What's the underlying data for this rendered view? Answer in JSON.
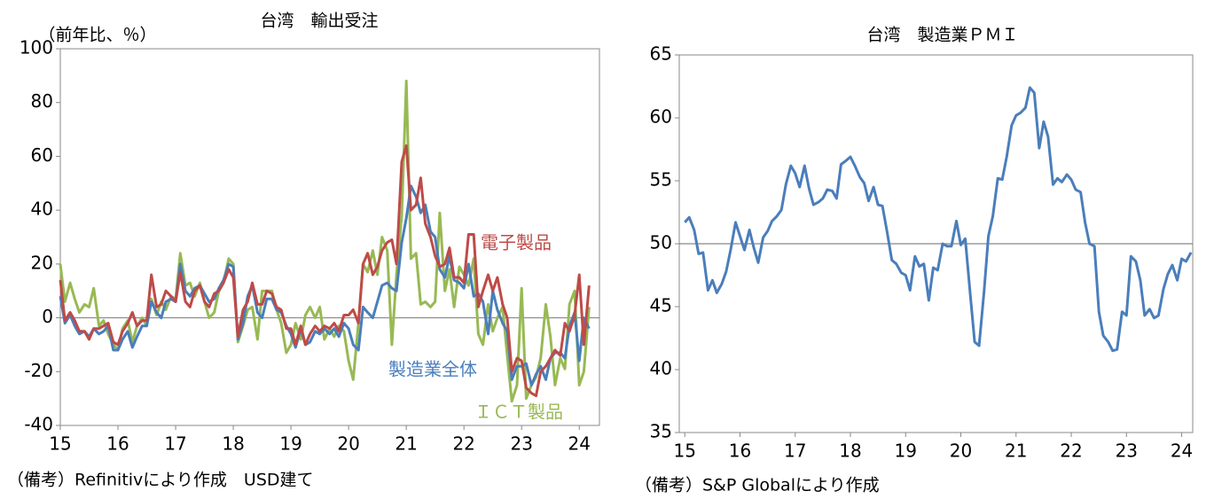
{
  "chart_data": [
    {
      "type": "line",
      "title": "台湾　輸出受注",
      "y_label": "（前年比、％）",
      "note": "（備考）Refinitivにより作成　USD建て",
      "x": [
        15,
        15.08,
        15.17,
        15.25,
        15.33,
        15.42,
        15.5,
        15.58,
        15.67,
        15.75,
        15.83,
        15.92,
        16,
        16.08,
        16.17,
        16.25,
        16.33,
        16.42,
        16.5,
        16.58,
        16.67,
        16.75,
        16.83,
        16.92,
        17,
        17.08,
        17.17,
        17.25,
        17.33,
        17.42,
        17.5,
        17.58,
        17.67,
        17.75,
        17.83,
        17.92,
        18,
        18.08,
        18.17,
        18.25,
        18.33,
        18.42,
        18.5,
        18.58,
        18.67,
        18.75,
        18.83,
        18.92,
        19,
        19.08,
        19.17,
        19.25,
        19.33,
        19.42,
        19.5,
        19.58,
        19.67,
        19.75,
        19.83,
        19.92,
        20,
        20.08,
        20.17,
        20.25,
        20.33,
        20.42,
        20.5,
        20.58,
        20.67,
        20.75,
        20.83,
        20.92,
        21,
        21.08,
        21.17,
        21.25,
        21.33,
        21.42,
        21.5,
        21.58,
        21.67,
        21.75,
        21.83,
        21.92,
        22,
        22.08,
        22.17,
        22.25,
        22.33,
        22.42,
        22.5,
        22.58,
        22.67,
        22.75,
        22.83,
        22.92,
        23,
        23.08,
        23.17,
        23.25,
        23.33,
        23.42,
        23.5,
        23.58,
        23.67,
        23.75,
        23.83,
        23.92,
        24,
        24.08,
        24.17
      ],
      "xlim": [
        15,
        24.35
      ],
      "xticks": [
        15,
        16,
        17,
        18,
        19,
        20,
        21,
        22,
        23,
        24
      ],
      "ylim": [
        -40,
        100
      ],
      "yticks": [
        -40,
        -20,
        0,
        20,
        40,
        60,
        80,
        100
      ],
      "hline": 0,
      "series": [
        {
          "name": "製造業全体",
          "color": "#4a7ebb",
          "values": [
            8,
            -2,
            1,
            -3,
            -6,
            -5,
            -7,
            -4,
            -6,
            -5,
            -3,
            -12,
            -12,
            -8,
            -5,
            -11,
            -7,
            -3,
            -3,
            6,
            2,
            0,
            6,
            7,
            6,
            20,
            10,
            8,
            11,
            12,
            9,
            6,
            7,
            11,
            14,
            20,
            19,
            -8,
            -2,
            8,
            12,
            2,
            0,
            7,
            7,
            3,
            2,
            -3,
            -6,
            -11,
            -4,
            -10,
            -9,
            -5,
            -6,
            -4,
            -6,
            -4,
            -7,
            -2,
            -4,
            -10,
            -12,
            4,
            2,
            0,
            6,
            12,
            13,
            11,
            10,
            28,
            37,
            49,
            45,
            39,
            42,
            32,
            30,
            18,
            15,
            23,
            14,
            13,
            11,
            20,
            8,
            9,
            6,
            -6,
            10,
            3,
            -2,
            -5,
            -23,
            -18,
            -18,
            -17,
            -25,
            -21,
            -18,
            -23,
            -15,
            -13,
            -13,
            -15,
            -3,
            2,
            -16,
            0,
            -4
          ]
        },
        {
          "name": "電子製品",
          "color": "#be4b48",
          "values": [
            14,
            -1,
            2,
            -1,
            -5,
            -5,
            -8,
            -4,
            -4,
            -3,
            -2,
            -9,
            -10,
            -5,
            -2,
            2,
            -3,
            -1,
            -1,
            16,
            4,
            5,
            10,
            8,
            6,
            17,
            6,
            4,
            10,
            12,
            6,
            4,
            9,
            10,
            13,
            18,
            15,
            -7,
            3,
            6,
            13,
            5,
            5,
            10,
            9,
            4,
            3,
            -4,
            -4,
            -10,
            -3,
            -10,
            -6,
            -3,
            -5,
            -3,
            -4,
            -2,
            -5,
            1,
            1,
            3,
            -2,
            20,
            24,
            16,
            19,
            25,
            28,
            29,
            20,
            58,
            64,
            40,
            42,
            52,
            35,
            30,
            23,
            19,
            20,
            26,
            15,
            15,
            13,
            31,
            31,
            4,
            10,
            16,
            10,
            15,
            5,
            0,
            -20,
            -15,
            -16,
            -26,
            -28,
            -29,
            -20,
            -18,
            -15,
            -12,
            -14,
            -2,
            -5,
            1,
            16,
            -10,
            12
          ]
        },
        {
          "name": "ＩＣＴ製品",
          "color": "#98b954",
          "values": [
            20,
            6,
            13,
            7,
            2,
            5,
            4,
            11,
            -3,
            -1,
            -6,
            -10,
            -12,
            -4,
            -1,
            -9,
            -3,
            0,
            -3,
            7,
            1,
            6,
            3,
            8,
            7,
            24,
            12,
            13,
            8,
            13,
            6,
            0,
            2,
            10,
            13,
            22,
            20,
            -9,
            -3,
            3,
            4,
            -8,
            10,
            10,
            10,
            3,
            -2,
            -13,
            -10,
            -2,
            -8,
            1,
            4,
            0,
            4,
            -8,
            -4,
            -7,
            -3,
            -5,
            -16,
            -23,
            -2,
            20,
            17,
            25,
            16,
            30,
            25,
            -10,
            16,
            38,
            88,
            22,
            24,
            5,
            6,
            4,
            6,
            39,
            10,
            18,
            4,
            19,
            16,
            12,
            22,
            -6,
            -10,
            5,
            -5,
            0,
            4,
            -14,
            -31,
            -25,
            11,
            -30,
            -25,
            -22,
            -15,
            5,
            -7,
            -25,
            -15,
            -19,
            5,
            10,
            -25,
            -20,
            4
          ]
        }
      ]
    },
    {
      "type": "line",
      "title": "台湾　製造業ＰＭＩ",
      "note": "（備考）S&P Globalにより作成",
      "x": [
        15,
        15.08,
        15.17,
        15.25,
        15.33,
        15.42,
        15.5,
        15.58,
        15.67,
        15.75,
        15.83,
        15.92,
        16,
        16.08,
        16.17,
        16.25,
        16.33,
        16.42,
        16.5,
        16.58,
        16.67,
        16.75,
        16.83,
        16.92,
        17,
        17.08,
        17.17,
        17.25,
        17.33,
        17.42,
        17.5,
        17.58,
        17.67,
        17.75,
        17.83,
        17.92,
        18,
        18.08,
        18.17,
        18.25,
        18.33,
        18.42,
        18.5,
        18.58,
        18.67,
        18.75,
        18.83,
        18.92,
        19,
        19.08,
        19.17,
        19.25,
        19.33,
        19.42,
        19.5,
        19.58,
        19.67,
        19.75,
        19.83,
        19.92,
        20,
        20.08,
        20.17,
        20.25,
        20.33,
        20.42,
        20.5,
        20.58,
        20.67,
        20.75,
        20.83,
        20.92,
        21,
        21.08,
        21.17,
        21.25,
        21.33,
        21.42,
        21.5,
        21.58,
        21.67,
        21.75,
        21.83,
        21.92,
        22,
        22.08,
        22.17,
        22.25,
        22.33,
        22.42,
        22.5,
        22.58,
        22.67,
        22.75,
        22.83,
        22.92,
        23,
        23.08,
        23.17,
        23.25,
        23.33,
        23.42,
        23.5,
        23.58,
        23.67,
        23.75,
        23.83,
        23.92,
        24,
        24.08,
        24.17
      ],
      "xlim": [
        14.9,
        24.2
      ],
      "xticks": [
        15,
        16,
        17,
        18,
        19,
        20,
        21,
        22,
        23,
        24
      ],
      "ylim": [
        35,
        65
      ],
      "yticks": [
        35,
        40,
        45,
        50,
        55,
        60,
        65
      ],
      "hline": 50,
      "series": [
        {
          "color": "#4a7ebb",
          "values": [
            51.7,
            52.1,
            51.1,
            49.2,
            49.3,
            46.3,
            47.1,
            46.1,
            46.8,
            47.8,
            49.5,
            51.7,
            50.6,
            49.5,
            51.1,
            49.7,
            48.5,
            50.5,
            51.0,
            51.8,
            52.2,
            52.7,
            54.7,
            56.2,
            55.6,
            54.5,
            56.2,
            54.4,
            53.1,
            53.3,
            53.6,
            54.3,
            54.2,
            53.6,
            56.3,
            56.6,
            56.9,
            56.2,
            55.3,
            54.8,
            53.4,
            54.5,
            53.1,
            53.0,
            50.8,
            48.7,
            48.4,
            47.7,
            47.5,
            46.3,
            49.0,
            48.2,
            48.4,
            45.5,
            48.1,
            47.9,
            50.0,
            49.8,
            49.8,
            51.8,
            49.9,
            50.4,
            46.0,
            42.2,
            41.9,
            46.2,
            50.6,
            52.2,
            55.2,
            55.1,
            56.9,
            59.4,
            60.2,
            60.4,
            60.8,
            62.4,
            62.0,
            57.6,
            59.7,
            58.5,
            54.7,
            55.2,
            54.9,
            55.5,
            55.1,
            54.3,
            54.1,
            51.7,
            50.0,
            49.8,
            44.6,
            42.7,
            42.2,
            41.5,
            41.6,
            44.6,
            44.3,
            49.0,
            48.6,
            47.1,
            44.3,
            44.8,
            44.1,
            44.3,
            46.4,
            47.6,
            48.3,
            47.1,
            48.8,
            48.6,
            49.3
          ]
        }
      ]
    }
  ]
}
